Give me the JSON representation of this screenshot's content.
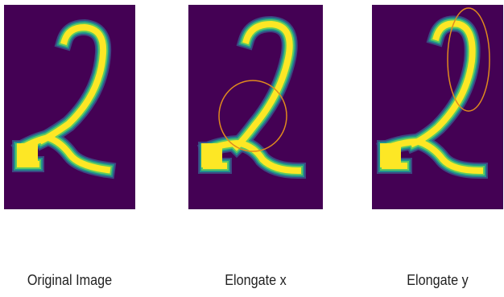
{
  "colors": {
    "background": "#440154",
    "stroke_yellow": "#fde725",
    "stroke_green": "#5ec962",
    "stroke_teal": "#21918c",
    "stroke_blue": "#3b528b",
    "highlight_ellipse": "#e08a1e"
  },
  "panels": [
    {
      "caption": "Original Image"
    },
    {
      "caption": "Elongate x"
    },
    {
      "caption": "Elongate y"
    }
  ]
}
